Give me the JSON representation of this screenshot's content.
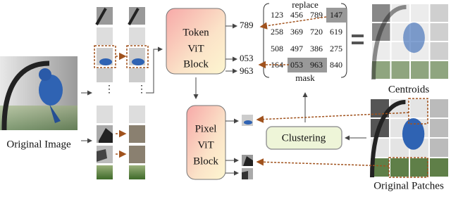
{
  "original_image": {
    "label": "Original Image"
  },
  "token_block": {
    "lines": [
      "Token",
      "ViT",
      "Block"
    ]
  },
  "pixel_block": {
    "lines": [
      "Pixel",
      "ViT",
      "Block"
    ]
  },
  "token_outputs": [
    "789",
    "053",
    "963"
  ],
  "codebook": {
    "title": "replace",
    "footer": "mask",
    "rows": [
      [
        "123",
        "456",
        "789",
        "147"
      ],
      [
        "258",
        "369",
        "720",
        "619"
      ],
      [
        "508",
        "497",
        "386",
        "275"
      ],
      [
        "164",
        "053",
        "963",
        "840"
      ]
    ]
  },
  "clustering": {
    "label": "Clustering"
  },
  "centroids": {
    "label": "Centroids"
  },
  "original_patches": {
    "label": "Original Patches"
  }
}
